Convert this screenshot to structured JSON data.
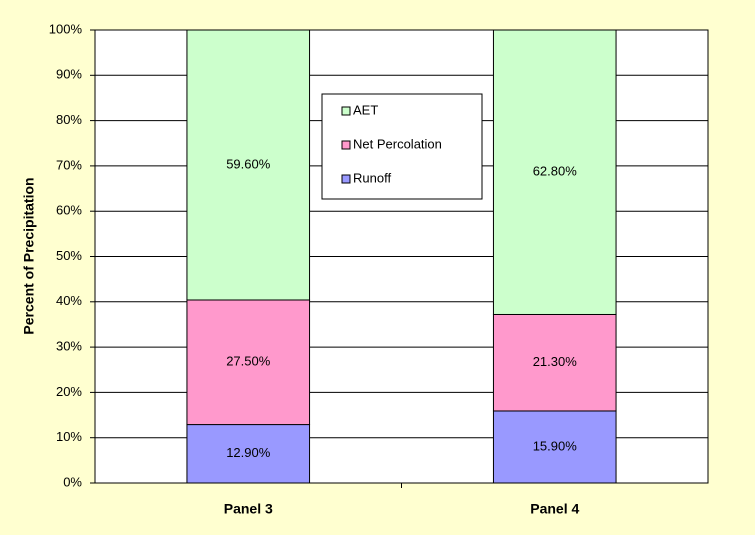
{
  "chart_data": {
    "type": "stacked_bar",
    "ylabel": "Percent of Precipitation",
    "categories": [
      "Panel 3",
      "Panel 4"
    ],
    "series": [
      {
        "name": "Runoff",
        "color": "#9999ff",
        "values": [
          12.9,
          15.9
        ],
        "value_labels": [
          "12.90%",
          "15.90%"
        ]
      },
      {
        "name": "Net Percolation",
        "color": "#ff99cc",
        "values": [
          27.5,
          21.3
        ],
        "value_labels": [
          "27.50%",
          "21.30%"
        ]
      },
      {
        "name": "AET",
        "color": "#ccffcc",
        "values": [
          59.6,
          62.8
        ],
        "value_labels": [
          "59.60%",
          "62.80%"
        ]
      }
    ],
    "ylim": [
      0,
      100
    ],
    "yticks": [
      {
        "value": 0,
        "label": "0%"
      },
      {
        "value": 10,
        "label": "10%"
      },
      {
        "value": 20,
        "label": "20%"
      },
      {
        "value": 30,
        "label": "30%"
      },
      {
        "value": 40,
        "label": "40%"
      },
      {
        "value": 50,
        "label": "50%"
      },
      {
        "value": 60,
        "label": "60%"
      },
      {
        "value": 70,
        "label": "70%"
      },
      {
        "value": 80,
        "label": "80%"
      },
      {
        "value": 90,
        "label": "90%"
      },
      {
        "value": 100,
        "label": "100%"
      }
    ],
    "grid": true
  }
}
